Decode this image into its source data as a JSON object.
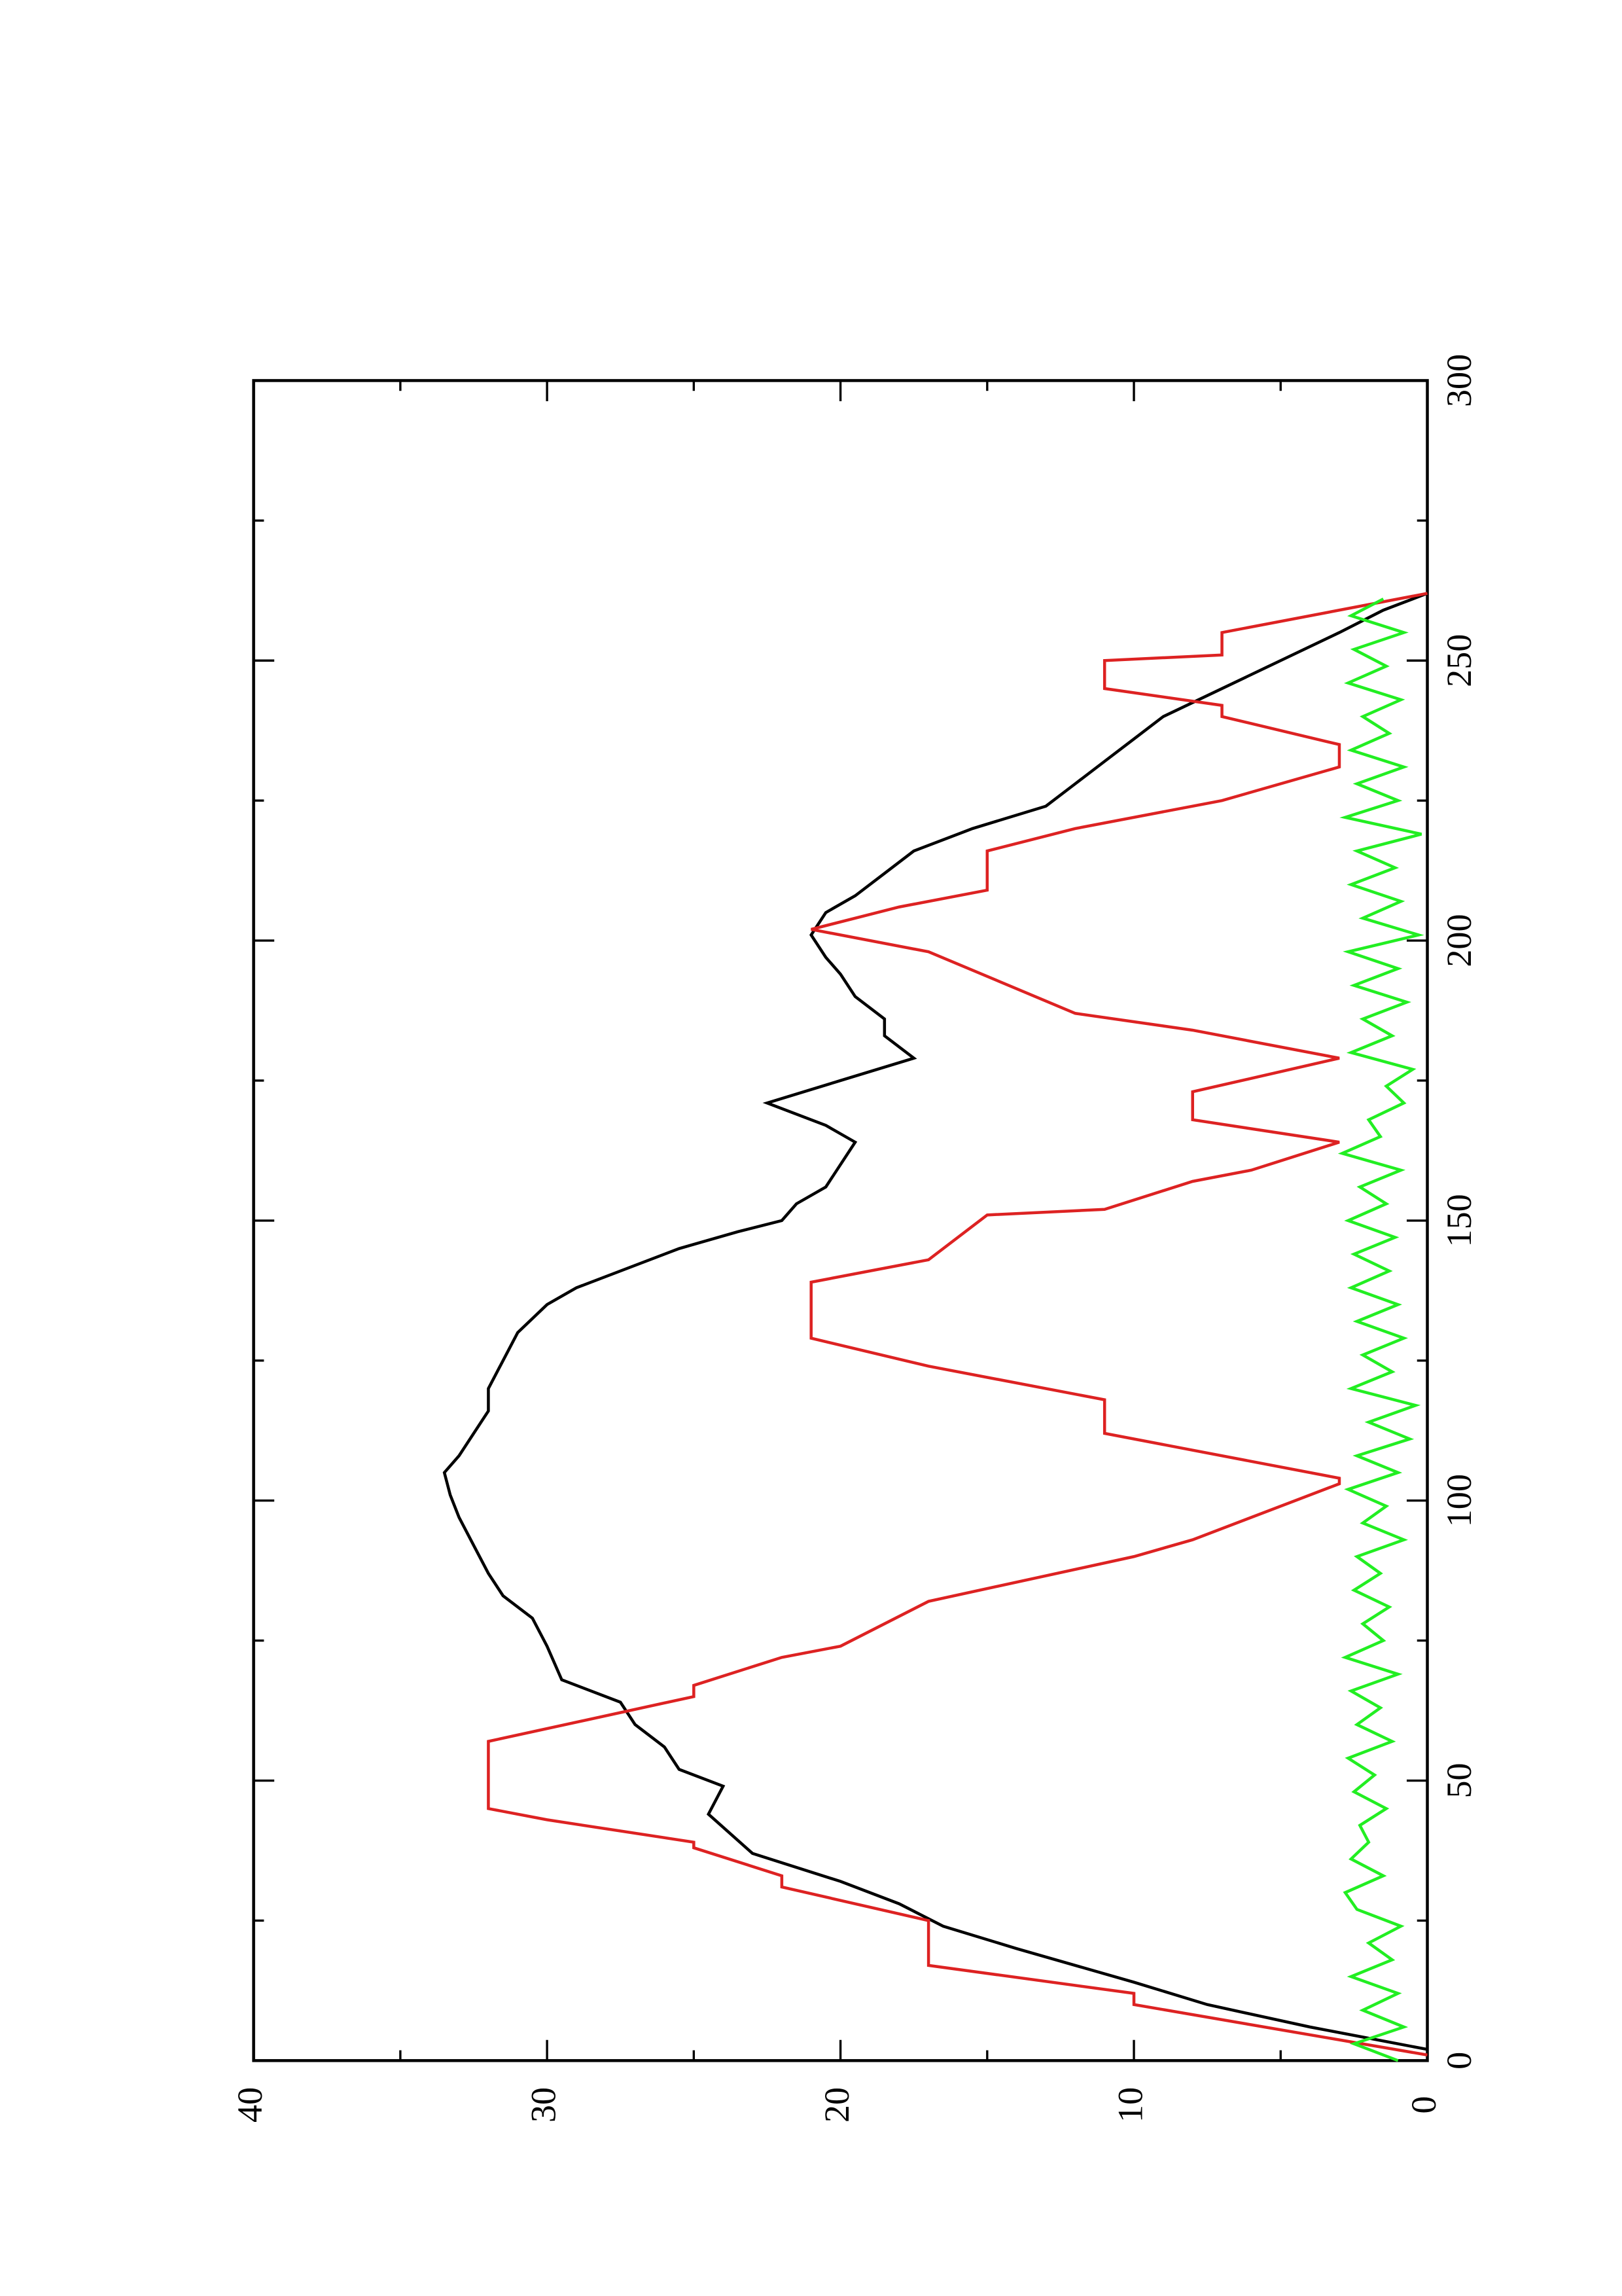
{
  "chart_data": {
    "type": "line",
    "xlim": [
      0,
      300
    ],
    "xticks": [
      0,
      50,
      100,
      150,
      200,
      250,
      300
    ],
    "ylim": [
      0,
      40
    ],
    "yticks": [
      0,
      10,
      20,
      30,
      40
    ],
    "series": [
      {
        "color": "#000000",
        "x": [
          2,
          6,
          10,
          14,
          20,
          24,
          28,
          32,
          37,
          44,
          49,
          52,
          56,
          60,
          64,
          68,
          74,
          79,
          83,
          87,
          92,
          97,
          101,
          105,
          108,
          112,
          116,
          120,
          125,
          130,
          135,
          138,
          142,
          145,
          148,
          150,
          153,
          156,
          160,
          164,
          167,
          171,
          175,
          179,
          183,
          186,
          190,
          194,
          197,
          201,
          205,
          208,
          212,
          216,
          220,
          224,
          228,
          232,
          236,
          240,
          245,
          250,
          255,
          259,
          262
        ],
        "values": [
          0,
          4,
          7.5,
          10,
          14,
          16.5,
          18,
          20,
          23,
          24.5,
          24,
          25.5,
          26,
          27,
          27.5,
          29.5,
          30,
          30.5,
          31.5,
          32,
          32.5,
          33,
          33.3,
          33.5,
          33,
          32.5,
          32,
          32,
          31.5,
          31,
          30,
          29,
          27,
          25.5,
          23.5,
          22,
          21.5,
          20.5,
          20,
          19.5,
          20.5,
          22.5,
          20,
          17.5,
          18.5,
          18.5,
          19.5,
          20,
          20.5,
          21,
          20.5,
          19.5,
          18.5,
          17.5,
          15.5,
          13,
          12,
          11,
          10,
          9,
          7,
          5,
          3,
          1.5,
          0
        ]
      },
      {
        "color": "#dd2222",
        "x": [
          1,
          10,
          12,
          17,
          25,
          31,
          33,
          38,
          39,
          43,
          45,
          57,
          65,
          67,
          72,
          74,
          82,
          90,
          93,
          103,
          104,
          107,
          109,
          112,
          118,
          124,
          129,
          139,
          143,
          151,
          152,
          157,
          159,
          164,
          168,
          173,
          179,
          184,
          187,
          198,
          202,
          206,
          209,
          216,
          220,
          225,
          231,
          235,
          240,
          242,
          245,
          250,
          251,
          255,
          262
        ],
        "values": [
          0,
          10,
          10,
          17,
          17,
          22,
          22,
          25,
          25,
          30,
          32,
          32,
          25,
          25,
          22,
          20,
          17,
          10,
          8,
          3,
          3,
          6,
          8,
          11,
          11,
          17,
          21,
          21,
          17,
          15,
          11,
          8,
          6,
          3,
          8,
          8,
          3,
          8,
          12,
          17,
          21,
          18,
          15,
          15,
          12,
          7,
          3,
          3,
          7,
          7,
          11,
          11,
          7,
          7,
          0
        ]
      },
      {
        "color": "#22ee22",
        "x": [
          0,
          3,
          6,
          9,
          12,
          15,
          18,
          21,
          24,
          27,
          30,
          33,
          36,
          39,
          42,
          45,
          48,
          51,
          54,
          57,
          60,
          63,
          66,
          69,
          72,
          75,
          78,
          81,
          84,
          87,
          90,
          93,
          96,
          99,
          102,
          105,
          108,
          111,
          114,
          117,
          120,
          123,
          126,
          129,
          132,
          135,
          138,
          141,
          144,
          147,
          150,
          153,
          156,
          159,
          162,
          165,
          168,
          171,
          174,
          177,
          180,
          183,
          186,
          189,
          192,
          195,
          198,
          201,
          204,
          207,
          210,
          213,
          216,
          219,
          222,
          225,
          228,
          231,
          234,
          237,
          240,
          243,
          246,
          249,
          252,
          255,
          258,
          261
        ],
        "values": [
          1,
          2.5,
          0.8,
          2.2,
          1.0,
          2.6,
          1.2,
          2.0,
          0.9,
          2.4,
          2.8,
          1.5,
          2.6,
          2.0,
          2.3,
          1.4,
          2.5,
          1.8,
          2.7,
          1.2,
          2.4,
          1.6,
          2.6,
          1.0,
          2.8,
          1.5,
          2.2,
          1.3,
          2.5,
          1.6,
          2.4,
          0.8,
          2.2,
          1.4,
          2.7,
          1.0,
          2.4,
          0.6,
          2.0,
          0.4,
          2.6,
          1.2,
          2.2,
          0.8,
          2.4,
          1.0,
          2.6,
          1.3,
          2.5,
          1.1,
          2.7,
          1.4,
          2.3,
          0.9,
          2.9,
          1.6,
          2.0,
          0.8,
          1.4,
          0.5,
          2.6,
          1.2,
          2.2,
          0.7,
          2.5,
          1.0,
          2.7,
          0.3,
          2.2,
          0.9,
          2.6,
          1.1,
          2.4,
          0.2,
          2.8,
          1.0,
          2.4,
          0.8,
          2.6,
          1.3,
          2.2,
          0.9,
          2.7,
          1.4,
          2.5,
          0.8,
          2.6,
          1.5
        ]
      }
    ]
  }
}
